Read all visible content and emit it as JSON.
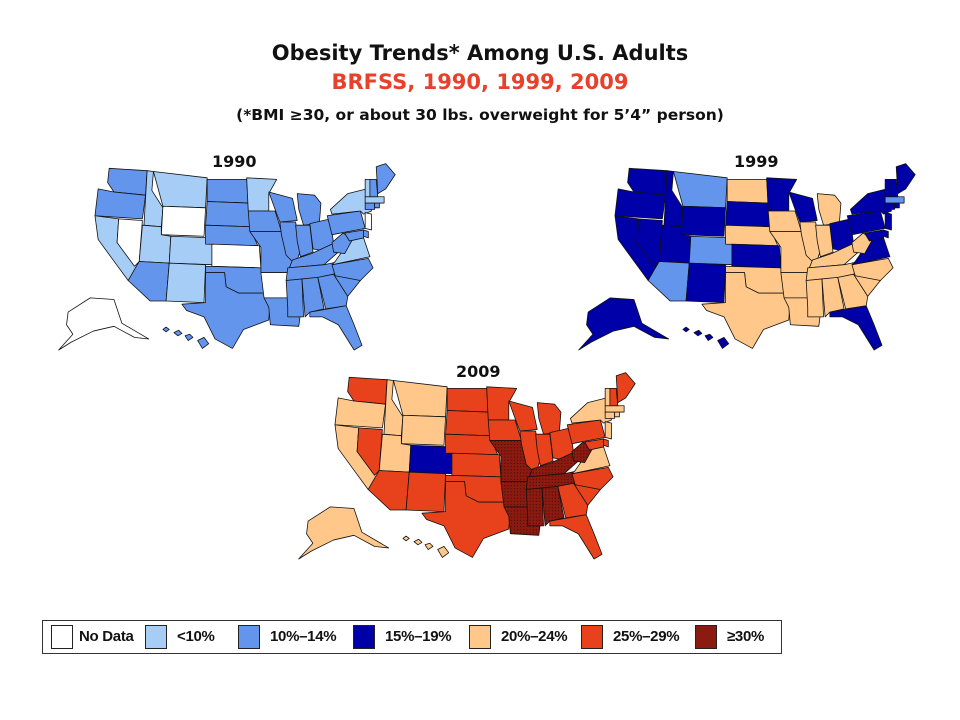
{
  "title": {
    "main": "Obesity Trends* Among U.S. Adults",
    "sub": "BRFSS, 1990, 1999, 2009",
    "note": "(*BMI ≥30, or about 30 lbs. overweight for 5’4” person)"
  },
  "colors": {
    "nodata": "#ffffff",
    "lt10": "#a6cdf5",
    "p10_14": "#6495ed",
    "p15_19": "#0000a8",
    "p20_24": "#ffc88a",
    "p25_29": "#e8421c",
    "ge30": "#8b1a10"
  },
  "legend": [
    {
      "key": "nodata",
      "label": "No Data"
    },
    {
      "key": "lt10",
      "label": "<10%"
    },
    {
      "key": "p10_14",
      "label": "10%–14%"
    },
    {
      "key": "p15_19",
      "label": "15%–19%"
    },
    {
      "key": "p20_24",
      "label": "20%–24%"
    },
    {
      "key": "p25_29",
      "label": "25%–29%"
    },
    {
      "key": "ge30",
      "label": "≥30%"
    }
  ],
  "maps": [
    {
      "year": "1990",
      "default_category": "p10_14",
      "states": {
        "WA": "p10_14",
        "OR": "p10_14",
        "CA": "lt10",
        "NV": "nodata",
        "ID": "lt10",
        "MT": "lt10",
        "WY": "nodata",
        "UT": "lt10",
        "CO": "lt10",
        "AZ": "p10_14",
        "NM": "lt10",
        "ND": "p10_14",
        "SD": "p10_14",
        "NE": "p10_14",
        "KS": "nodata",
        "OK": "p10_14",
        "TX": "p10_14",
        "MN": "lt10",
        "IA": "p10_14",
        "MO": "p10_14",
        "AR": "nodata",
        "LA": "p10_14",
        "WI": "p10_14",
        "IL": "p10_14",
        "MI": "p10_14",
        "IN": "p10_14",
        "OH": "p10_14",
        "KY": "p10_14",
        "TN": "p10_14",
        "MS": "p10_14",
        "AL": "p10_14",
        "GA": "p10_14",
        "FL": "p10_14",
        "SC": "p10_14",
        "NC": "p10_14",
        "VA": "lt10",
        "WV": "p10_14",
        "PA": "p10_14",
        "NY": "lt10",
        "NJ": "nodata",
        "DE": "p10_14",
        "MD": "p10_14",
        "CT": "p10_14",
        "RI": "p10_14",
        "MA": "lt10",
        "VT": "lt10",
        "NH": "p10_14",
        "ME": "p10_14",
        "AK": "nodata",
        "HI": "p10_14"
      }
    },
    {
      "year": "1999",
      "default_category": "p20_24",
      "states": {
        "WA": "p15_19",
        "OR": "p15_19",
        "CA": "p15_19",
        "NV": "p15_19",
        "ID": "p15_19",
        "MT": "p10_14",
        "WY": "p15_19",
        "UT": "p15_19",
        "CO": "p10_14",
        "AZ": "p10_14",
        "NM": "p15_19",
        "ND": "p20_24",
        "SD": "p15_19",
        "NE": "p20_24",
        "KS": "p15_19",
        "OK": "p20_24",
        "TX": "p20_24",
        "MN": "p15_19",
        "IA": "p20_24",
        "MO": "p20_24",
        "AR": "p20_24",
        "LA": "p20_24",
        "WI": "p15_19",
        "IL": "p20_24",
        "MI": "p20_24",
        "IN": "p20_24",
        "OH": "p15_19",
        "KY": "p20_24",
        "TN": "p20_24",
        "MS": "p20_24",
        "AL": "p20_24",
        "GA": "p20_24",
        "FL": "p15_19",
        "SC": "p20_24",
        "NC": "p20_24",
        "VA": "p15_19",
        "WV": "p20_24",
        "PA": "p15_19",
        "NY": "p15_19",
        "NJ": "p15_19",
        "DE": "p15_19",
        "MD": "p15_19",
        "CT": "p15_19",
        "RI": "p15_19",
        "MA": "p10_14",
        "VT": "p15_19",
        "NH": "p15_19",
        "ME": "p15_19",
        "AK": "p15_19",
        "HI": "p15_19"
      }
    },
    {
      "year": "2009",
      "default_category": "p25_29",
      "states": {
        "WA": "p25_29",
        "OR": "p20_24",
        "CA": "p20_24",
        "NV": "p25_29",
        "ID": "p20_24",
        "MT": "p20_24",
        "WY": "p20_24",
        "UT": "p20_24",
        "CO": "p15_19",
        "AZ": "p25_29",
        "NM": "p25_29",
        "ND": "p25_29",
        "SD": "p25_29",
        "NE": "p25_29",
        "KS": "p25_29",
        "OK": "p25_29",
        "TX": "p25_29",
        "MN": "p25_29",
        "IA": "p25_29",
        "MO": "ge30",
        "AR": "ge30",
        "LA": "ge30",
        "WI": "p25_29",
        "IL": "p25_29",
        "MI": "p25_29",
        "IN": "p25_29",
        "OH": "p25_29",
        "KY": "ge30",
        "TN": "ge30",
        "MS": "ge30",
        "AL": "ge30",
        "GA": "p25_29",
        "FL": "p25_29",
        "SC": "p25_29",
        "NC": "p25_29",
        "VA": "p20_24",
        "WV": "ge30",
        "PA": "p25_29",
        "NY": "p20_24",
        "NJ": "p20_24",
        "DE": "p25_29",
        "MD": "p25_29",
        "CT": "p20_24",
        "RI": "p20_24",
        "MA": "p20_24",
        "VT": "p20_24",
        "NH": "p25_29",
        "ME": "p25_29",
        "AK": "p20_24",
        "HI": "p20_24"
      }
    }
  ]
}
